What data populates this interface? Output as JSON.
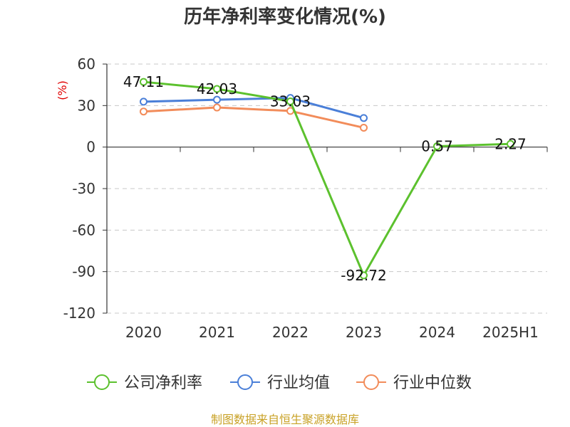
{
  "chart_data": {
    "type": "line",
    "title": "历年净利率变化情况(%)",
    "ylabel": "(%)",
    "xlabel": "",
    "categories": [
      "2020",
      "2021",
      "2022",
      "2023",
      "2024",
      "2025H1"
    ],
    "ylim": [
      -120,
      60
    ],
    "yticks": [
      60,
      30,
      0,
      -30,
      -60,
      -90,
      -120
    ],
    "grid": true,
    "grid_style": "dashed",
    "legend_position": "bottom",
    "series": [
      {
        "name": "公司净利率",
        "color": "#5cc12e",
        "values": [
          47.11,
          42.03,
          33.03,
          -92.72,
          0.57,
          2.27
        ],
        "labels": [
          "47.11",
          "42.03",
          "33.03",
          "-92.72",
          "0.57",
          "2.27"
        ]
      },
      {
        "name": "行业均值",
        "color": "#4a7fd8",
        "values": [
          32.8,
          34.2,
          35.5,
          21.0,
          null,
          null
        ]
      },
      {
        "name": "行业中位数",
        "color": "#f28c5a",
        "values": [
          25.7,
          28.6,
          26.1,
          14.0,
          null,
          null
        ]
      }
    ]
  },
  "footer": {
    "source": "制图数据来自恒生聚源数据库"
  }
}
